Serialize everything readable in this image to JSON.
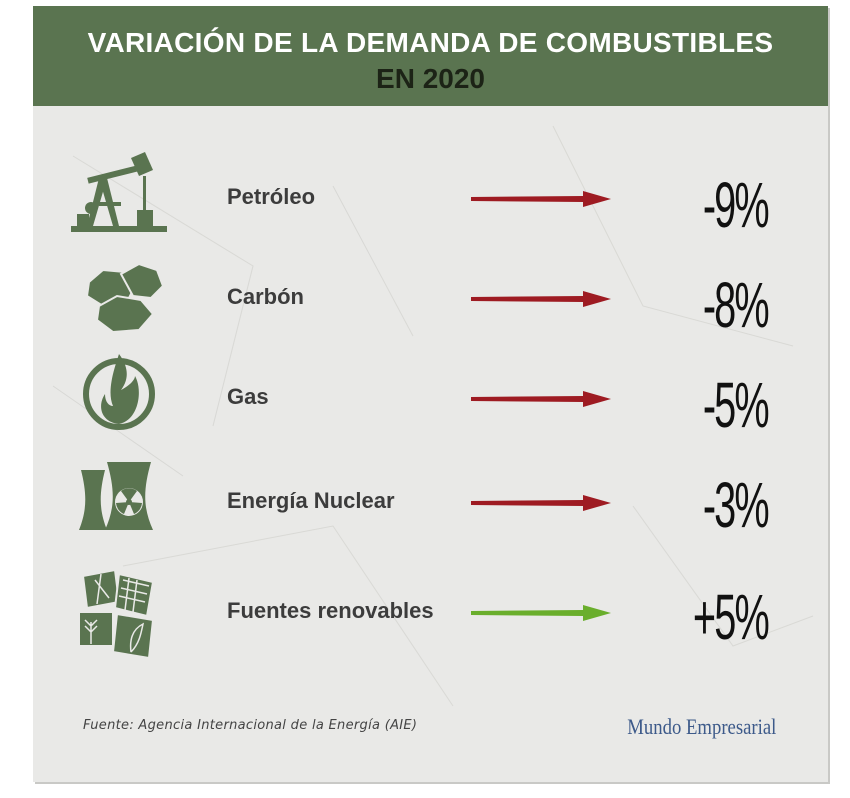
{
  "header": {
    "title_line1": "VARIACIÓN DE LA DEMANDA DE COMBUSTIBLES",
    "title_line2": "EN 2020"
  },
  "chart_data": {
    "type": "table",
    "title": "VARIACIÓN DE LA DEMANDA DE COMBUSTIBLES EN 2020",
    "categories": [
      "Petróleo",
      "Carbón",
      "Gas",
      "Energía Nuclear",
      "Fuentes renovables"
    ],
    "values": [
      -9,
      -8,
      -5,
      -3,
      5
    ],
    "display_values": [
      "-9%",
      "-8%",
      "-5%",
      "-3%",
      "+5%"
    ],
    "icons": [
      "oil-pump-icon",
      "coal-icon",
      "gas-flame-icon",
      "nuclear-plant-icon",
      "renewables-icon"
    ],
    "colors": {
      "negative": "#9e1b22",
      "positive": "#6aae2c",
      "icon": "#5a7450",
      "header": "#5a7450"
    }
  },
  "footer": {
    "source": "Fuente: Agencia Internacional de la Energía (AIE)",
    "brand": "Mundo Empresarial"
  }
}
